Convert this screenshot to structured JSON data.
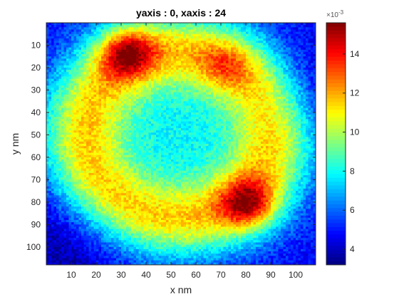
{
  "chart_data": {
    "type": "heatmap",
    "title": "yaxis : 0, xaxis : 24",
    "xlabel": "x nm",
    "ylabel": "y nm",
    "x_range": [
      0,
      108
    ],
    "y_range": [
      0,
      108
    ],
    "y_direction": "reversed",
    "x_ticks": [
      10,
      20,
      30,
      40,
      50,
      60,
      70,
      80,
      90,
      100
    ],
    "y_ticks": [
      10,
      20,
      30,
      40,
      50,
      60,
      70,
      80,
      90,
      100
    ],
    "colormap": "jet",
    "colorbar": {
      "exponent_label": "×10",
      "exponent": "-3",
      "range": [
        3.2,
        15.6
      ],
      "ticks": [
        4,
        6,
        8,
        10,
        12,
        14
      ]
    },
    "features": {
      "background_level": 4.8,
      "ring_level": 10.5,
      "center_level": 8.2,
      "ring_center_x": 53,
      "ring_center_y": 50,
      "peaks": [
        {
          "x": 32,
          "y": 13,
          "value": 15.5
        },
        {
          "x": 81,
          "y": 81,
          "value": 15.2
        },
        {
          "x": 72,
          "y": 19,
          "value": 12.5
        }
      ]
    }
  }
}
